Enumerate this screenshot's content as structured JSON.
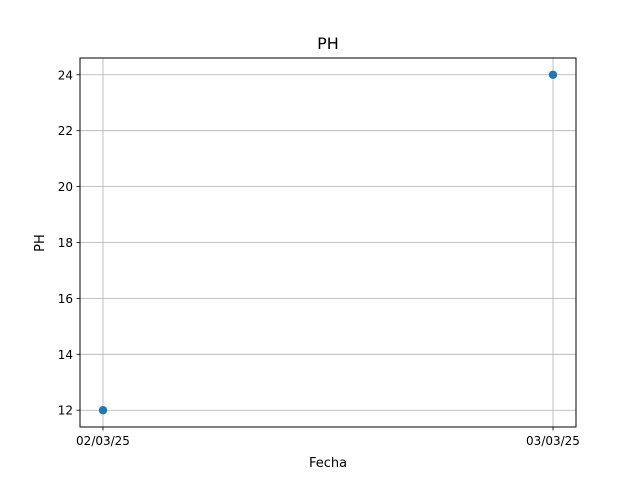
{
  "chart_data": {
    "type": "scatter",
    "title": "PH",
    "xlabel": "Fecha",
    "ylabel": "PH",
    "x_tick_labels": [
      "02/03/25",
      "03/03/25"
    ],
    "y_ticks": [
      12,
      14,
      16,
      18,
      20,
      22,
      24
    ],
    "ylim": [
      11.4,
      24.6
    ],
    "grid": true,
    "series": [
      {
        "x": [
          "02/03/25",
          "03/03/25"
        ],
        "y": [
          12,
          24
        ],
        "color": "#1f77b4"
      }
    ]
  }
}
